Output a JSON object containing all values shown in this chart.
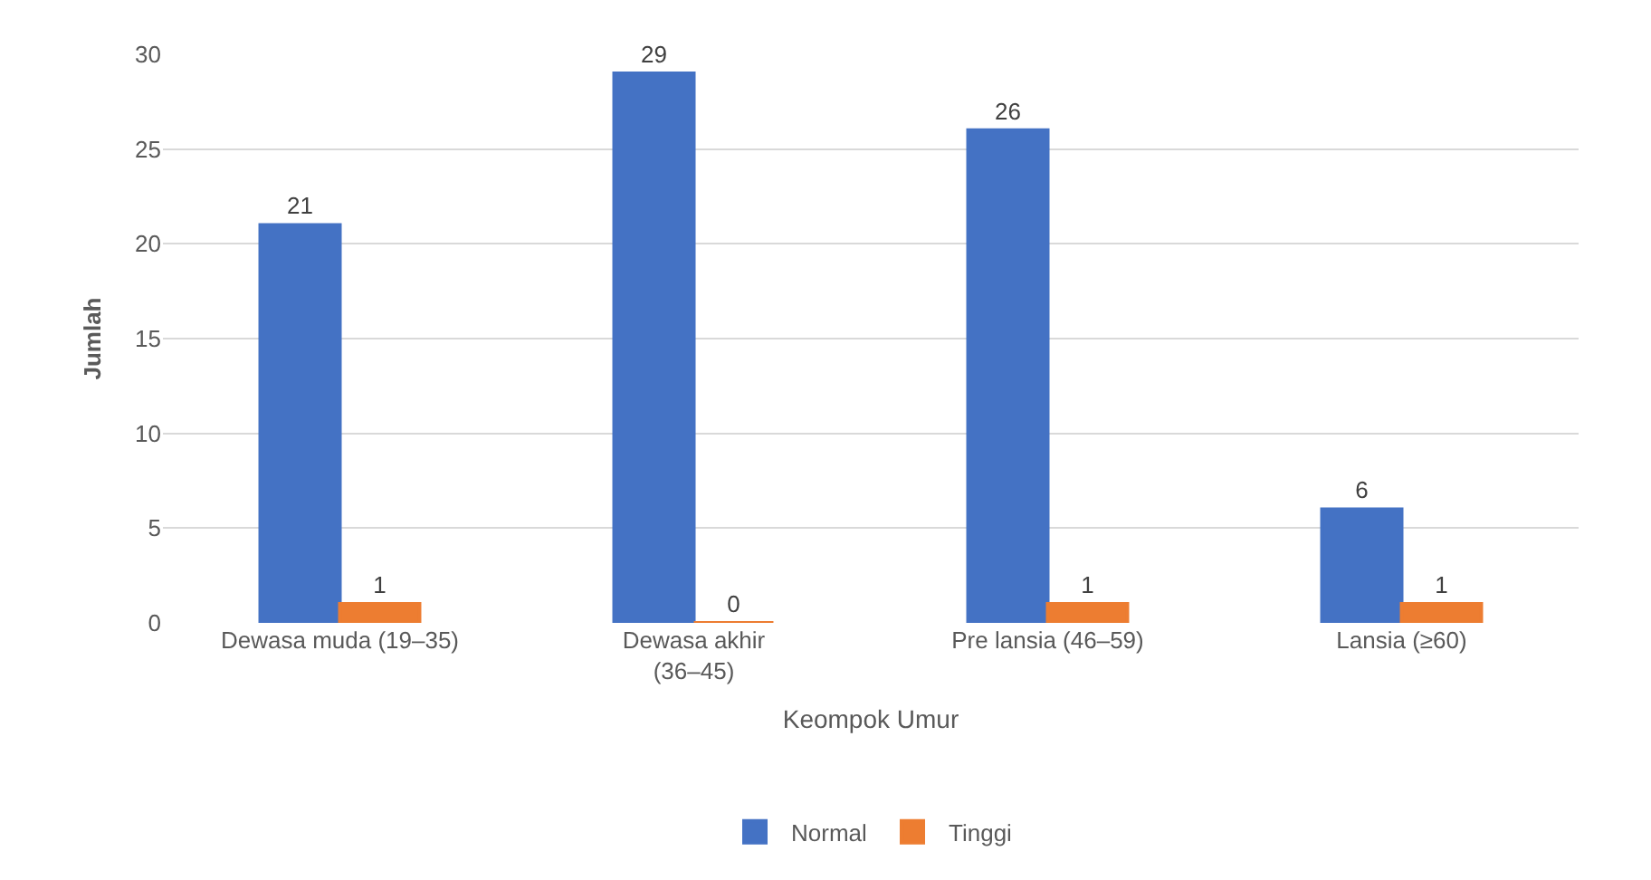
{
  "chart_data": {
    "type": "bar",
    "xlabel": "Keompok Umur",
    "ylabel": "Jumlah",
    "categories": [
      "Dewasa muda (19–35)",
      "Dewasa akhir (36–45)",
      "Pre lansia (46–59)",
      "Lansia (≥60)"
    ],
    "series": [
      {
        "name": "Normal",
        "color": "#4472c4",
        "values": [
          21,
          29,
          26,
          6
        ]
      },
      {
        "name": "Tinggi",
        "color": "#ed7d31",
        "values": [
          1,
          0,
          1,
          1
        ]
      }
    ],
    "ylim": [
      0,
      30
    ],
    "yticks": [
      0,
      5,
      10,
      15,
      20,
      25,
      30
    ],
    "grid": "y",
    "legend": "bottom",
    "data_labels": true
  }
}
